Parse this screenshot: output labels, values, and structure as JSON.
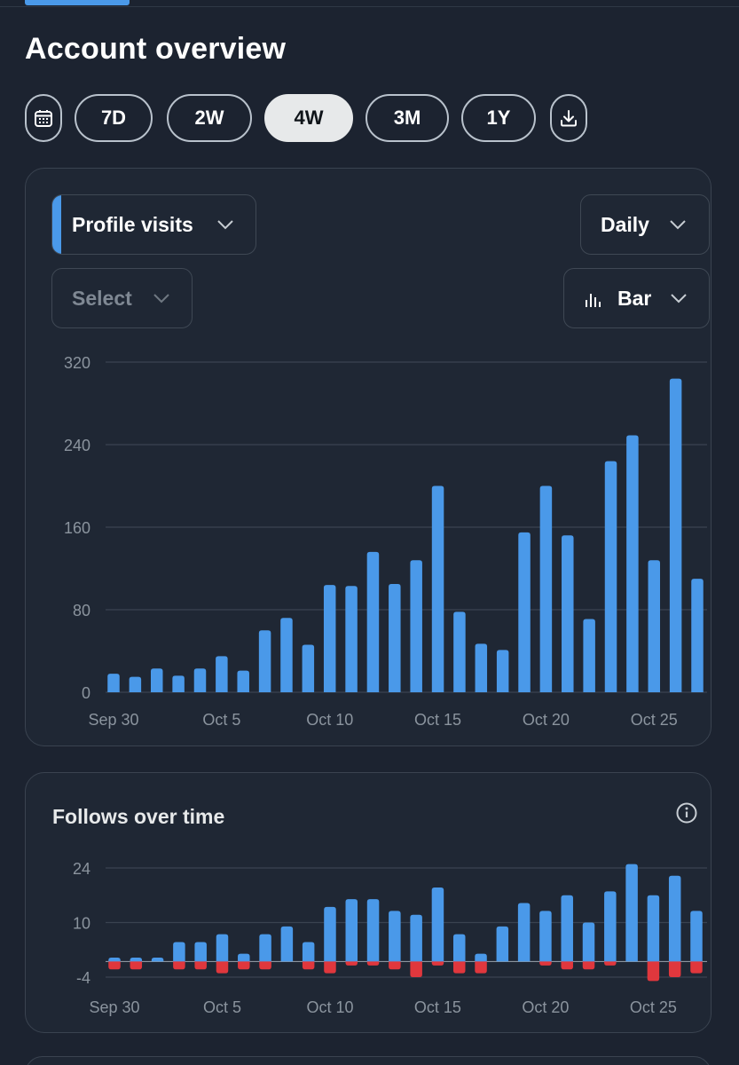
{
  "page": {
    "title": "Account overview"
  },
  "range_selector": {
    "options": [
      "7D",
      "2W",
      "4W",
      "3M",
      "1Y"
    ],
    "selected": "4W",
    "calendar_icon": "calendar-icon",
    "download_icon": "download-icon"
  },
  "main_chart_card": {
    "metric_dropdown": "Profile visits",
    "compare_dropdown": "Select",
    "interval_dropdown": "Daily",
    "chart_type_dropdown": "Bar",
    "chart_type_icon": "bar-chart-icon"
  },
  "follows_card": {
    "title": "Follows over time",
    "info_icon": "info-icon"
  },
  "colors": {
    "accent": "#4a99e9",
    "bar_blue": "#4a99e9",
    "bar_red": "#e0373d",
    "background": "#1c2330",
    "grid": "#3a4350",
    "axis_text": "#8b949e"
  },
  "chart_data": [
    {
      "type": "bar",
      "x": [
        "Sep 30",
        "Oct 1",
        "Oct 2",
        "Oct 3",
        "Oct 4",
        "Oct 5",
        "Oct 6",
        "Oct 7",
        "Oct 8",
        "Oct 9",
        "Oct 10",
        "Oct 11",
        "Oct 12",
        "Oct 13",
        "Oct 14",
        "Oct 15",
        "Oct 16",
        "Oct 17",
        "Oct 18",
        "Oct 19",
        "Oct 20",
        "Oct 21",
        "Oct 22",
        "Oct 23",
        "Oct 24",
        "Oct 25",
        "Oct 26",
        "Oct 27"
      ],
      "x_tick_labels": [
        "Sep 30",
        "Oct 5",
        "Oct 10",
        "Oct 15",
        "Oct 20",
        "Oct 25"
      ],
      "x_tick_indices": [
        0,
        5,
        10,
        15,
        20,
        25
      ],
      "series": [
        {
          "values": [
            18,
            15,
            23,
            16,
            23,
            35,
            21,
            60,
            72,
            46,
            104,
            103,
            136,
            105,
            128,
            200,
            78,
            47,
            41,
            155,
            200,
            152,
            71,
            224,
            249,
            128,
            304,
            110
          ]
        }
      ],
      "yticks": [
        0,
        80,
        160,
        240,
        320
      ],
      "ylim": [
        0,
        320
      ],
      "grid": true
    },
    {
      "type": "bar",
      "x": [
        "Sep 30",
        "Oct 1",
        "Oct 2",
        "Oct 3",
        "Oct 4",
        "Oct 5",
        "Oct 6",
        "Oct 7",
        "Oct 8",
        "Oct 9",
        "Oct 10",
        "Oct 11",
        "Oct 12",
        "Oct 13",
        "Oct 14",
        "Oct 15",
        "Oct 16",
        "Oct 17",
        "Oct 18",
        "Oct 19",
        "Oct 20",
        "Oct 21",
        "Oct 22",
        "Oct 23",
        "Oct 24",
        "Oct 25",
        "Oct 26",
        "Oct 27"
      ],
      "x_tick_labels": [
        "Sep 30",
        "Oct 5",
        "Oct 10",
        "Oct 15",
        "Oct 20",
        "Oct 25"
      ],
      "x_tick_indices": [
        0,
        5,
        10,
        15,
        20,
        25
      ],
      "series": [
        {
          "sign": "positive",
          "values": [
            1,
            1,
            1,
            5,
            5,
            7,
            2,
            7,
            9,
            5,
            14,
            16,
            16,
            13,
            12,
            19,
            7,
            2,
            9,
            15,
            13,
            17,
            10,
            18,
            25,
            17,
            22,
            13
          ]
        },
        {
          "sign": "negative",
          "values": [
            -2,
            -2,
            0,
            -2,
            -2,
            -3,
            -2,
            -2,
            0,
            -2,
            -3,
            -1,
            -1,
            -2,
            -4,
            -1,
            -3,
            -3,
            0,
            0,
            -1,
            -2,
            -2,
            -1,
            0,
            -5,
            -4,
            -3
          ]
        }
      ],
      "yticks": [
        -4,
        10,
        24
      ],
      "ylim": [
        -4,
        24
      ],
      "grid": true
    }
  ]
}
